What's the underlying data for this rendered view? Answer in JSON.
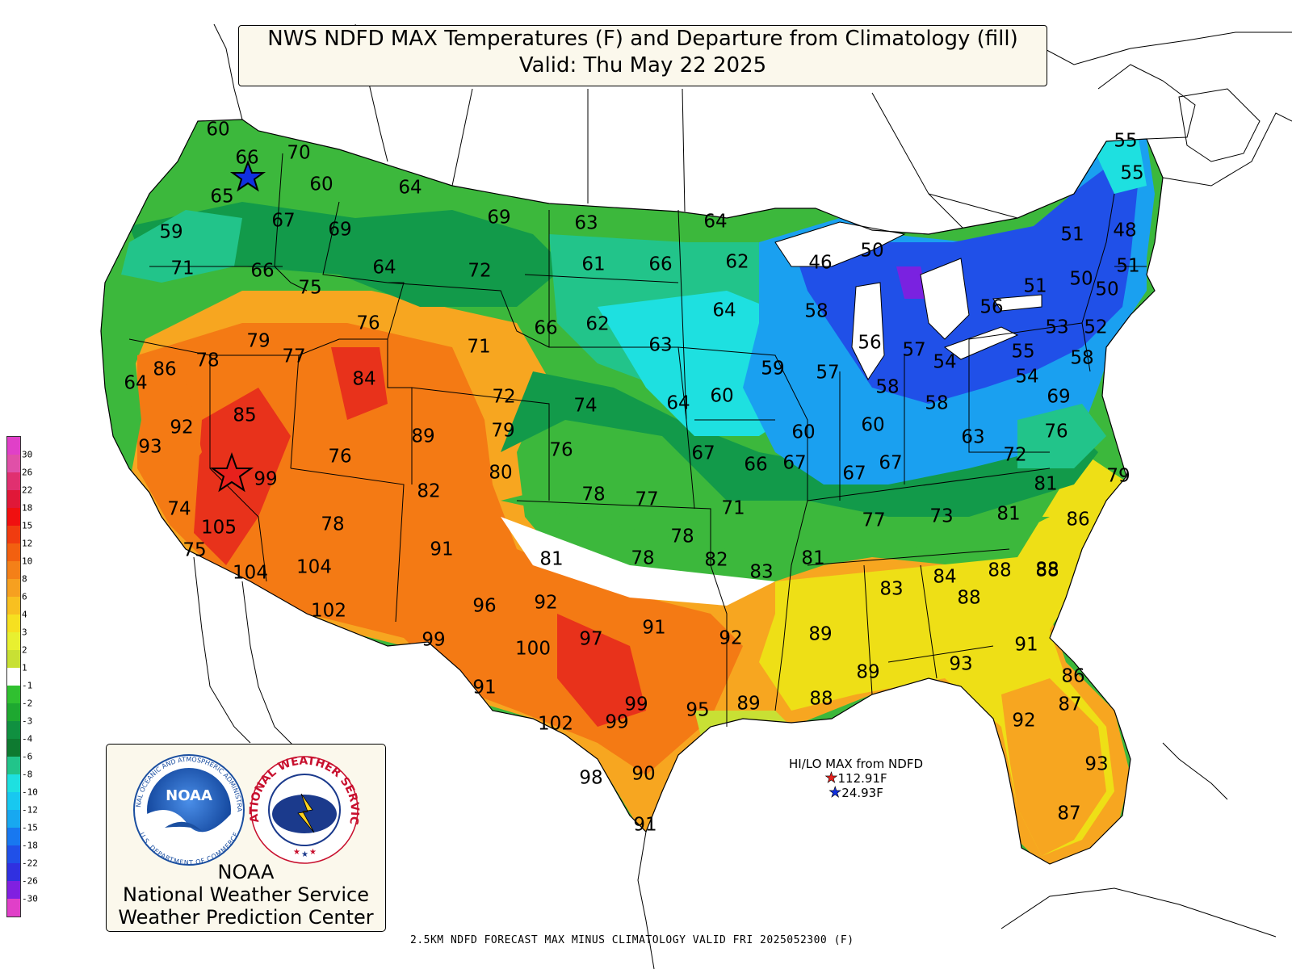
{
  "header": {
    "title_line1": "NWS NDFD MAX Temperatures (F) and Departure from Climatology (fill)",
    "title_line2": "Valid: Thu May 22 2025"
  },
  "colors": {
    "ocean": "#ffffff",
    "very_warm": "#e8321b",
    "warm": "#f47a14",
    "mild_warm": "#f7a620",
    "slight_warm": "#eedf16",
    "near_normal": "#c8e034",
    "slight_cool": "#3cb83c",
    "cool": "#129a4a",
    "cooler": "#22c48a",
    "cold": "#1ee0e0",
    "colder": "#1aa0f0",
    "coldest": "#2050e8",
    "record_cold": "#7a22e0"
  },
  "legend": {
    "bins": [
      {
        "label": "30",
        "color": "#e040c8"
      },
      {
        "label": "26",
        "color": "#e050a8"
      },
      {
        "label": "22",
        "color": "#e03070"
      },
      {
        "label": "18",
        "color": "#e01838"
      },
      {
        "label": "15",
        "color": "#f01010"
      },
      {
        "label": "12",
        "color": "#f03c10"
      },
      {
        "label": "10",
        "color": "#f26010"
      },
      {
        "label": "8",
        "color": "#f48018"
      },
      {
        "label": "6",
        "color": "#f6a020"
      },
      {
        "label": "4",
        "color": "#f8c020"
      },
      {
        "label": "3",
        "color": "#f6e020"
      },
      {
        "label": "2",
        "color": "#e8f030"
      },
      {
        "label": "1",
        "color": "#c8e034"
      },
      {
        "label": "-1",
        "color": "#ffffff"
      },
      {
        "label": "-2",
        "color": "#30c030"
      },
      {
        "label": "-3",
        "color": "#1ea830"
      },
      {
        "label": "-4",
        "color": "#109040"
      },
      {
        "label": "-6",
        "color": "#0e7a30"
      },
      {
        "label": "-8",
        "color": "#22c48a"
      },
      {
        "label": "-10",
        "color": "#1ee0e0"
      },
      {
        "label": "-12",
        "color": "#18c8f0"
      },
      {
        "label": "-15",
        "color": "#18a8f0"
      },
      {
        "label": "-18",
        "color": "#1878f0"
      },
      {
        "label": "-22",
        "color": "#2050e8"
      },
      {
        "label": "-26",
        "color": "#3030e0"
      },
      {
        "label": "-30",
        "color": "#8020e0"
      },
      {
        "label": "",
        "color": "#e040c8"
      }
    ]
  },
  "temps": [
    {
      "v": "60"
    },
    {
      "v": "66"
    },
    {
      "v": "70"
    },
    {
      "v": "65"
    },
    {
      "v": "60"
    },
    {
      "v": "64"
    },
    {
      "v": "59"
    },
    {
      "v": "67"
    },
    {
      "v": "69"
    },
    {
      "v": "69"
    },
    {
      "v": "63"
    },
    {
      "v": "64"
    },
    {
      "v": "71"
    },
    {
      "v": "66"
    },
    {
      "v": "64"
    },
    {
      "v": "72"
    },
    {
      "v": "61"
    },
    {
      "v": "66"
    },
    {
      "v": "62"
    },
    {
      "v": "50"
    },
    {
      "v": "46"
    },
    {
      "v": "59"
    },
    {
      "v": "75"
    },
    {
      "v": "76"
    },
    {
      "v": "66"
    },
    {
      "v": "62"
    },
    {
      "v": "64"
    },
    {
      "v": "58"
    },
    {
      "v": "79"
    },
    {
      "v": "77"
    },
    {
      "v": "78"
    },
    {
      "v": "71"
    },
    {
      "v": "63"
    },
    {
      "v": "56"
    },
    {
      "v": "57"
    },
    {
      "v": "54"
    },
    {
      "v": "86"
    },
    {
      "v": "84"
    },
    {
      "v": "59"
    },
    {
      "v": "57"
    },
    {
      "v": "64"
    },
    {
      "v": "72"
    },
    {
      "v": "74"
    },
    {
      "v": "64"
    },
    {
      "v": "60"
    },
    {
      "v": "58"
    },
    {
      "v": "58"
    },
    {
      "v": "54"
    },
    {
      "v": "85"
    },
    {
      "v": "92"
    },
    {
      "v": "89"
    },
    {
      "v": "79"
    },
    {
      "v": "93"
    },
    {
      "v": "76"
    },
    {
      "v": "76"
    },
    {
      "v": "67"
    },
    {
      "v": "60"
    },
    {
      "v": "60"
    },
    {
      "v": "63"
    },
    {
      "v": "99"
    },
    {
      "v": "80"
    },
    {
      "v": "66"
    },
    {
      "v": "67"
    },
    {
      "v": "67"
    },
    {
      "v": "67"
    },
    {
      "v": "72"
    },
    {
      "v": "82"
    },
    {
      "v": "78"
    },
    {
      "v": "77"
    },
    {
      "v": "71"
    },
    {
      "v": "74"
    },
    {
      "v": "105"
    },
    {
      "v": "78"
    },
    {
      "v": "77"
    },
    {
      "v": "73"
    },
    {
      "v": "81"
    },
    {
      "v": "75"
    },
    {
      "v": "78"
    },
    {
      "v": "91"
    },
    {
      "v": "81"
    },
    {
      "v": "78"
    },
    {
      "v": "82"
    },
    {
      "v": "83"
    },
    {
      "v": "81"
    },
    {
      "v": "104"
    },
    {
      "v": "104"
    },
    {
      "v": "83"
    },
    {
      "v": "84"
    },
    {
      "v": "88"
    },
    {
      "v": "102"
    },
    {
      "v": "96"
    },
    {
      "v": "92"
    },
    {
      "v": "88"
    },
    {
      "v": "88"
    },
    {
      "v": "99"
    },
    {
      "v": "100"
    },
    {
      "v": "97"
    },
    {
      "v": "91"
    },
    {
      "v": "92"
    },
    {
      "v": "89"
    },
    {
      "v": "93"
    },
    {
      "v": "91"
    },
    {
      "v": "91"
    },
    {
      "v": "89"
    },
    {
      "v": "86"
    },
    {
      "v": "99"
    },
    {
      "v": "95"
    },
    {
      "v": "89"
    },
    {
      "v": "88"
    },
    {
      "v": "87"
    },
    {
      "v": "102"
    },
    {
      "v": "99"
    },
    {
      "v": "92"
    },
    {
      "v": "98"
    },
    {
      "v": "90"
    },
    {
      "v": "93"
    },
    {
      "v": "91"
    },
    {
      "v": "87"
    },
    {
      "v": "55"
    },
    {
      "v": "55"
    },
    {
      "v": "51"
    },
    {
      "v": "48"
    },
    {
      "v": "51"
    },
    {
      "v": "50"
    },
    {
      "v": "51"
    },
    {
      "v": "50"
    },
    {
      "v": "56"
    },
    {
      "v": "53"
    },
    {
      "v": "52"
    },
    {
      "v": "55"
    },
    {
      "v": "58"
    },
    {
      "v": "69"
    },
    {
      "v": "76"
    },
    {
      "v": "79"
    },
    {
      "v": "81"
    },
    {
      "v": "86"
    },
    {
      "v": "88"
    }
  ],
  "hilo": {
    "title": "HI/LO MAX from NDFD",
    "hi_value": "112.91F",
    "lo_value": "24.93F",
    "hi_color": "#e8201c",
    "lo_color": "#1030e0"
  },
  "logos": {
    "noaa_ring_text": "NATIONAL OCEANIC AND ATMOSPHERIC ADMINISTRATION",
    "noaa_bottom_text": "U.S. DEPARTMENT OF COMMERCE",
    "noaa_inner": "NOAA",
    "nws_ring_text": "NATIONAL WEATHER SERVICE",
    "line1": "NOAA",
    "line2": "National Weather Service",
    "line3": "Weather Prediction Center"
  },
  "footer": {
    "text": "2.5KM NDFD FORECAST MAX MINUS CLIMATOLOGY VALID FRI 2025052300 (F)"
  }
}
